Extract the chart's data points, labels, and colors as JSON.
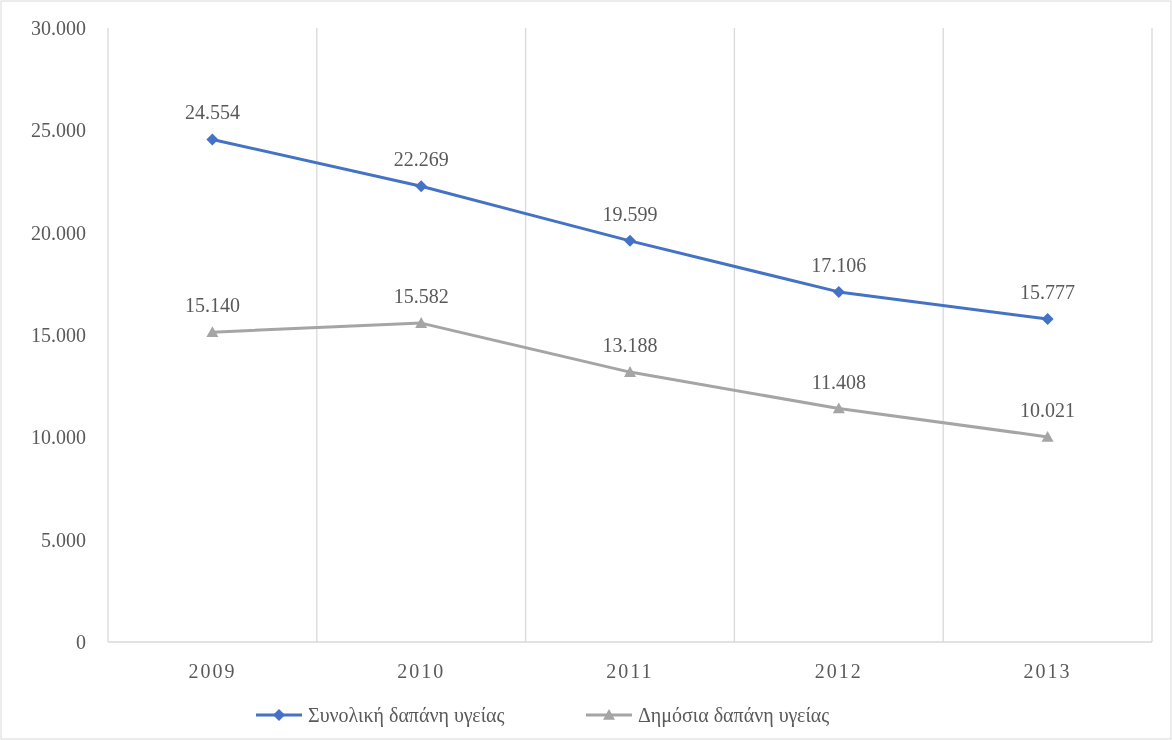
{
  "chart_data": {
    "type": "line",
    "categories": [
      "2009",
      "2010",
      "2011",
      "2012",
      "2013"
    ],
    "series": [
      {
        "name": "Συνολική δαπάνη υγείας",
        "color": "#4472c4",
        "marker": "diamond",
        "values": [
          24554,
          22269,
          19599,
          17106,
          15777
        ],
        "value_labels": [
          "24.554",
          "22.269",
          "19.599",
          "17.106",
          "15.777"
        ]
      },
      {
        "name": "Δημόσια δαπάνη υγείας",
        "color": "#a5a5a5",
        "marker": "triangle",
        "values": [
          15140,
          15582,
          13188,
          11408,
          10021
        ],
        "value_labels": [
          "15.140",
          "15.582",
          "13.188",
          "11.408",
          "10.021"
        ]
      }
    ],
    "ylim": [
      0,
      30000
    ],
    "yticks": [
      {
        "value": 0,
        "label": "0"
      },
      {
        "value": 5000,
        "label": "5.000"
      },
      {
        "value": 10000,
        "label": "10.000"
      },
      {
        "value": 15000,
        "label": "15.000"
      },
      {
        "value": 20000,
        "label": "20.000"
      },
      {
        "value": 25000,
        "label": "25.000"
      },
      {
        "value": 30000,
        "label": "30.000"
      }
    ],
    "grid": "x",
    "legend": "bottom"
  }
}
